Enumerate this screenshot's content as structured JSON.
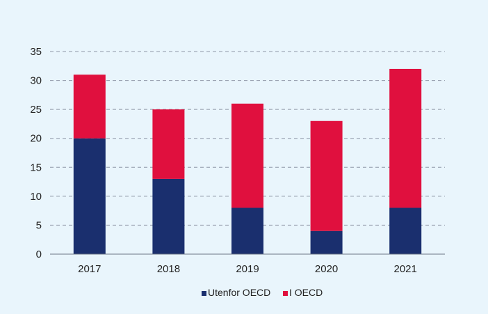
{
  "chart_data": {
    "type": "bar",
    "stacked": true,
    "categories": [
      "2017",
      "2018",
      "2019",
      "2020",
      "2021"
    ],
    "series": [
      {
        "name": "Utenfor OECD",
        "color": "#1a2f6e",
        "values": [
          20,
          13,
          8,
          4,
          8
        ]
      },
      {
        "name": "I OECD",
        "color": "#e0103e",
        "values": [
          11,
          12,
          18,
          19,
          24
        ]
      }
    ],
    "ylim": [
      0,
      35
    ],
    "yticks": [
      0,
      5,
      10,
      15,
      20,
      25,
      30,
      35
    ],
    "grid": true,
    "legend_position": "bottom",
    "title": "",
    "xlabel": "",
    "ylabel": ""
  }
}
